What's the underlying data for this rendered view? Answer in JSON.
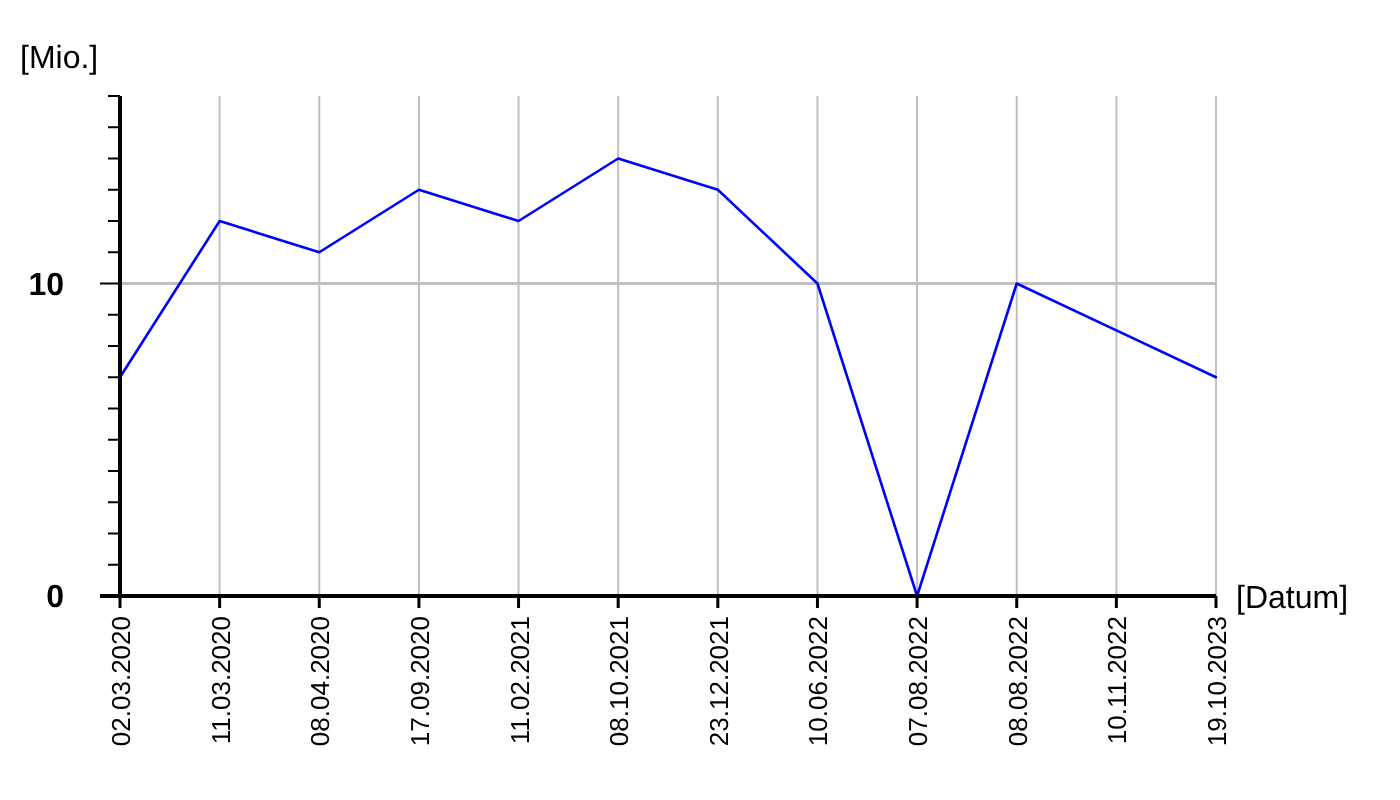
{
  "chart_data": {
    "type": "line",
    "xlabel": "[Datum]",
    "ylabel": "[Mio.]",
    "categories": [
      "02.03.2020",
      "11.03.2020",
      "08.04.2020",
      "17.09.2020",
      "11.02.2021",
      "08.10.2021",
      "23.12.2021",
      "10.06.2022",
      "07.08.2022",
      "08.08.2022",
      "10.11.2022",
      "19.10.2023"
    ],
    "series": [
      {
        "color": "#0000ff",
        "values": [
          7,
          12,
          11,
          13,
          12,
          14,
          13,
          10,
          0,
          10,
          8.5,
          7
        ]
      }
    ],
    "ylim": [
      0,
      16
    ],
    "yticks": [
      0,
      {
        "value": 1,
        "label": null
      },
      {
        "value": 2,
        "label": null
      },
      {
        "value": 3,
        "label": null
      },
      {
        "value": 4,
        "label": null
      },
      {
        "value": 5,
        "label": null
      },
      {
        "value": 6,
        "label": null
      },
      {
        "value": 7,
        "label": null
      },
      {
        "value": 8,
        "label": null
      },
      {
        "value": 9,
        "label": null
      },
      10,
      {
        "value": 11,
        "label": null
      },
      {
        "value": 12,
        "label": null
      },
      {
        "value": 13,
        "label": null
      },
      {
        "value": 14,
        "label": null
      },
      {
        "value": 15,
        "label": null
      },
      {
        "value": 16,
        "label": null
      }
    ],
    "grid": "x",
    "ref_lines": [
      {
        "axis": "y",
        "value": 10,
        "color": "#c0c0c0"
      }
    ],
    "marker": "none",
    "line_style": "solid"
  }
}
